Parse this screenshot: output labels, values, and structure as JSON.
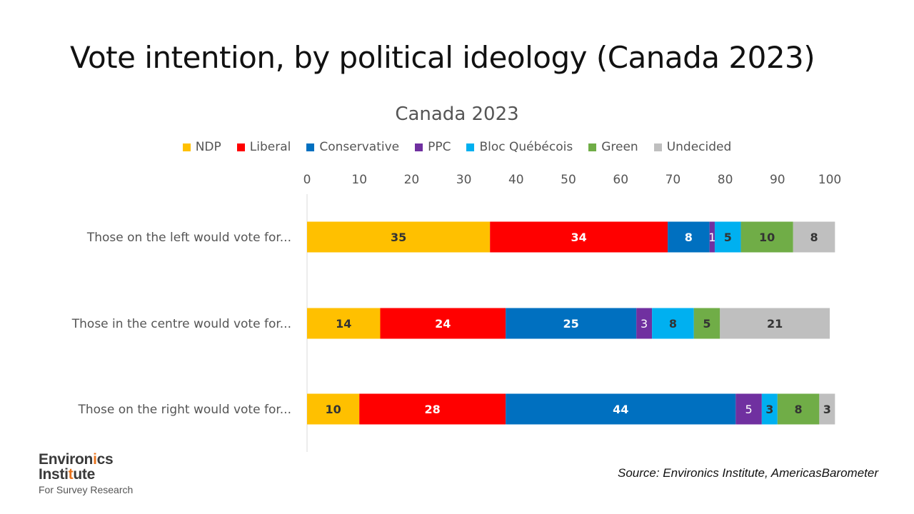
{
  "slide_title": "Vote intention, by political ideology (Canada 2023)",
  "source": "Source: Environics Institute, AmericasBarometer",
  "logo": {
    "line1_a": "Environ",
    "line1_b": "i",
    "line1_c": "cs",
    "line2_a": "Insti",
    "line2_b": "t",
    "line2_c": "ute",
    "line3": "For Survey Research"
  },
  "chart_data": {
    "type": "bar",
    "orientation": "horizontal",
    "stacked": true,
    "title": "Canada 2023",
    "categories": [
      "Those on the left would vote for...",
      "Those in the centre would vote for...",
      "Those on the right would vote for..."
    ],
    "xlim": [
      0,
      100
    ],
    "xticks": [
      0,
      10,
      20,
      30,
      40,
      50,
      60,
      70,
      80,
      90,
      100
    ],
    "axis_position": "top",
    "legend_position": "top",
    "grid": false,
    "series": [
      {
        "name": "NDP",
        "color": "#FFC000",
        "label_color": "#333333",
        "values": [
          35,
          14,
          10
        ]
      },
      {
        "name": "Liberal",
        "color": "#FF0000",
        "label_color": "#ffffff",
        "values": [
          34,
          24,
          28
        ]
      },
      {
        "name": "Conservative",
        "color": "#0070C0",
        "label_color": "#ffffff",
        "values": [
          8,
          25,
          44
        ]
      },
      {
        "name": "PPC",
        "color": "#7030A0",
        "label_color": "#ffffff",
        "values": [
          1,
          3,
          5
        ]
      },
      {
        "name": "Bloc Québécois",
        "color": "#00B0F0",
        "label_color": "#333333",
        "values": [
          5,
          8,
          3
        ]
      },
      {
        "name": "Green",
        "color": "#70AD47",
        "label_color": "#333333",
        "values": [
          10,
          5,
          8
        ]
      },
      {
        "name": "Undecided",
        "color": "#BFBFBF",
        "label_color": "#333333",
        "values": [
          8,
          21,
          3
        ]
      }
    ]
  }
}
